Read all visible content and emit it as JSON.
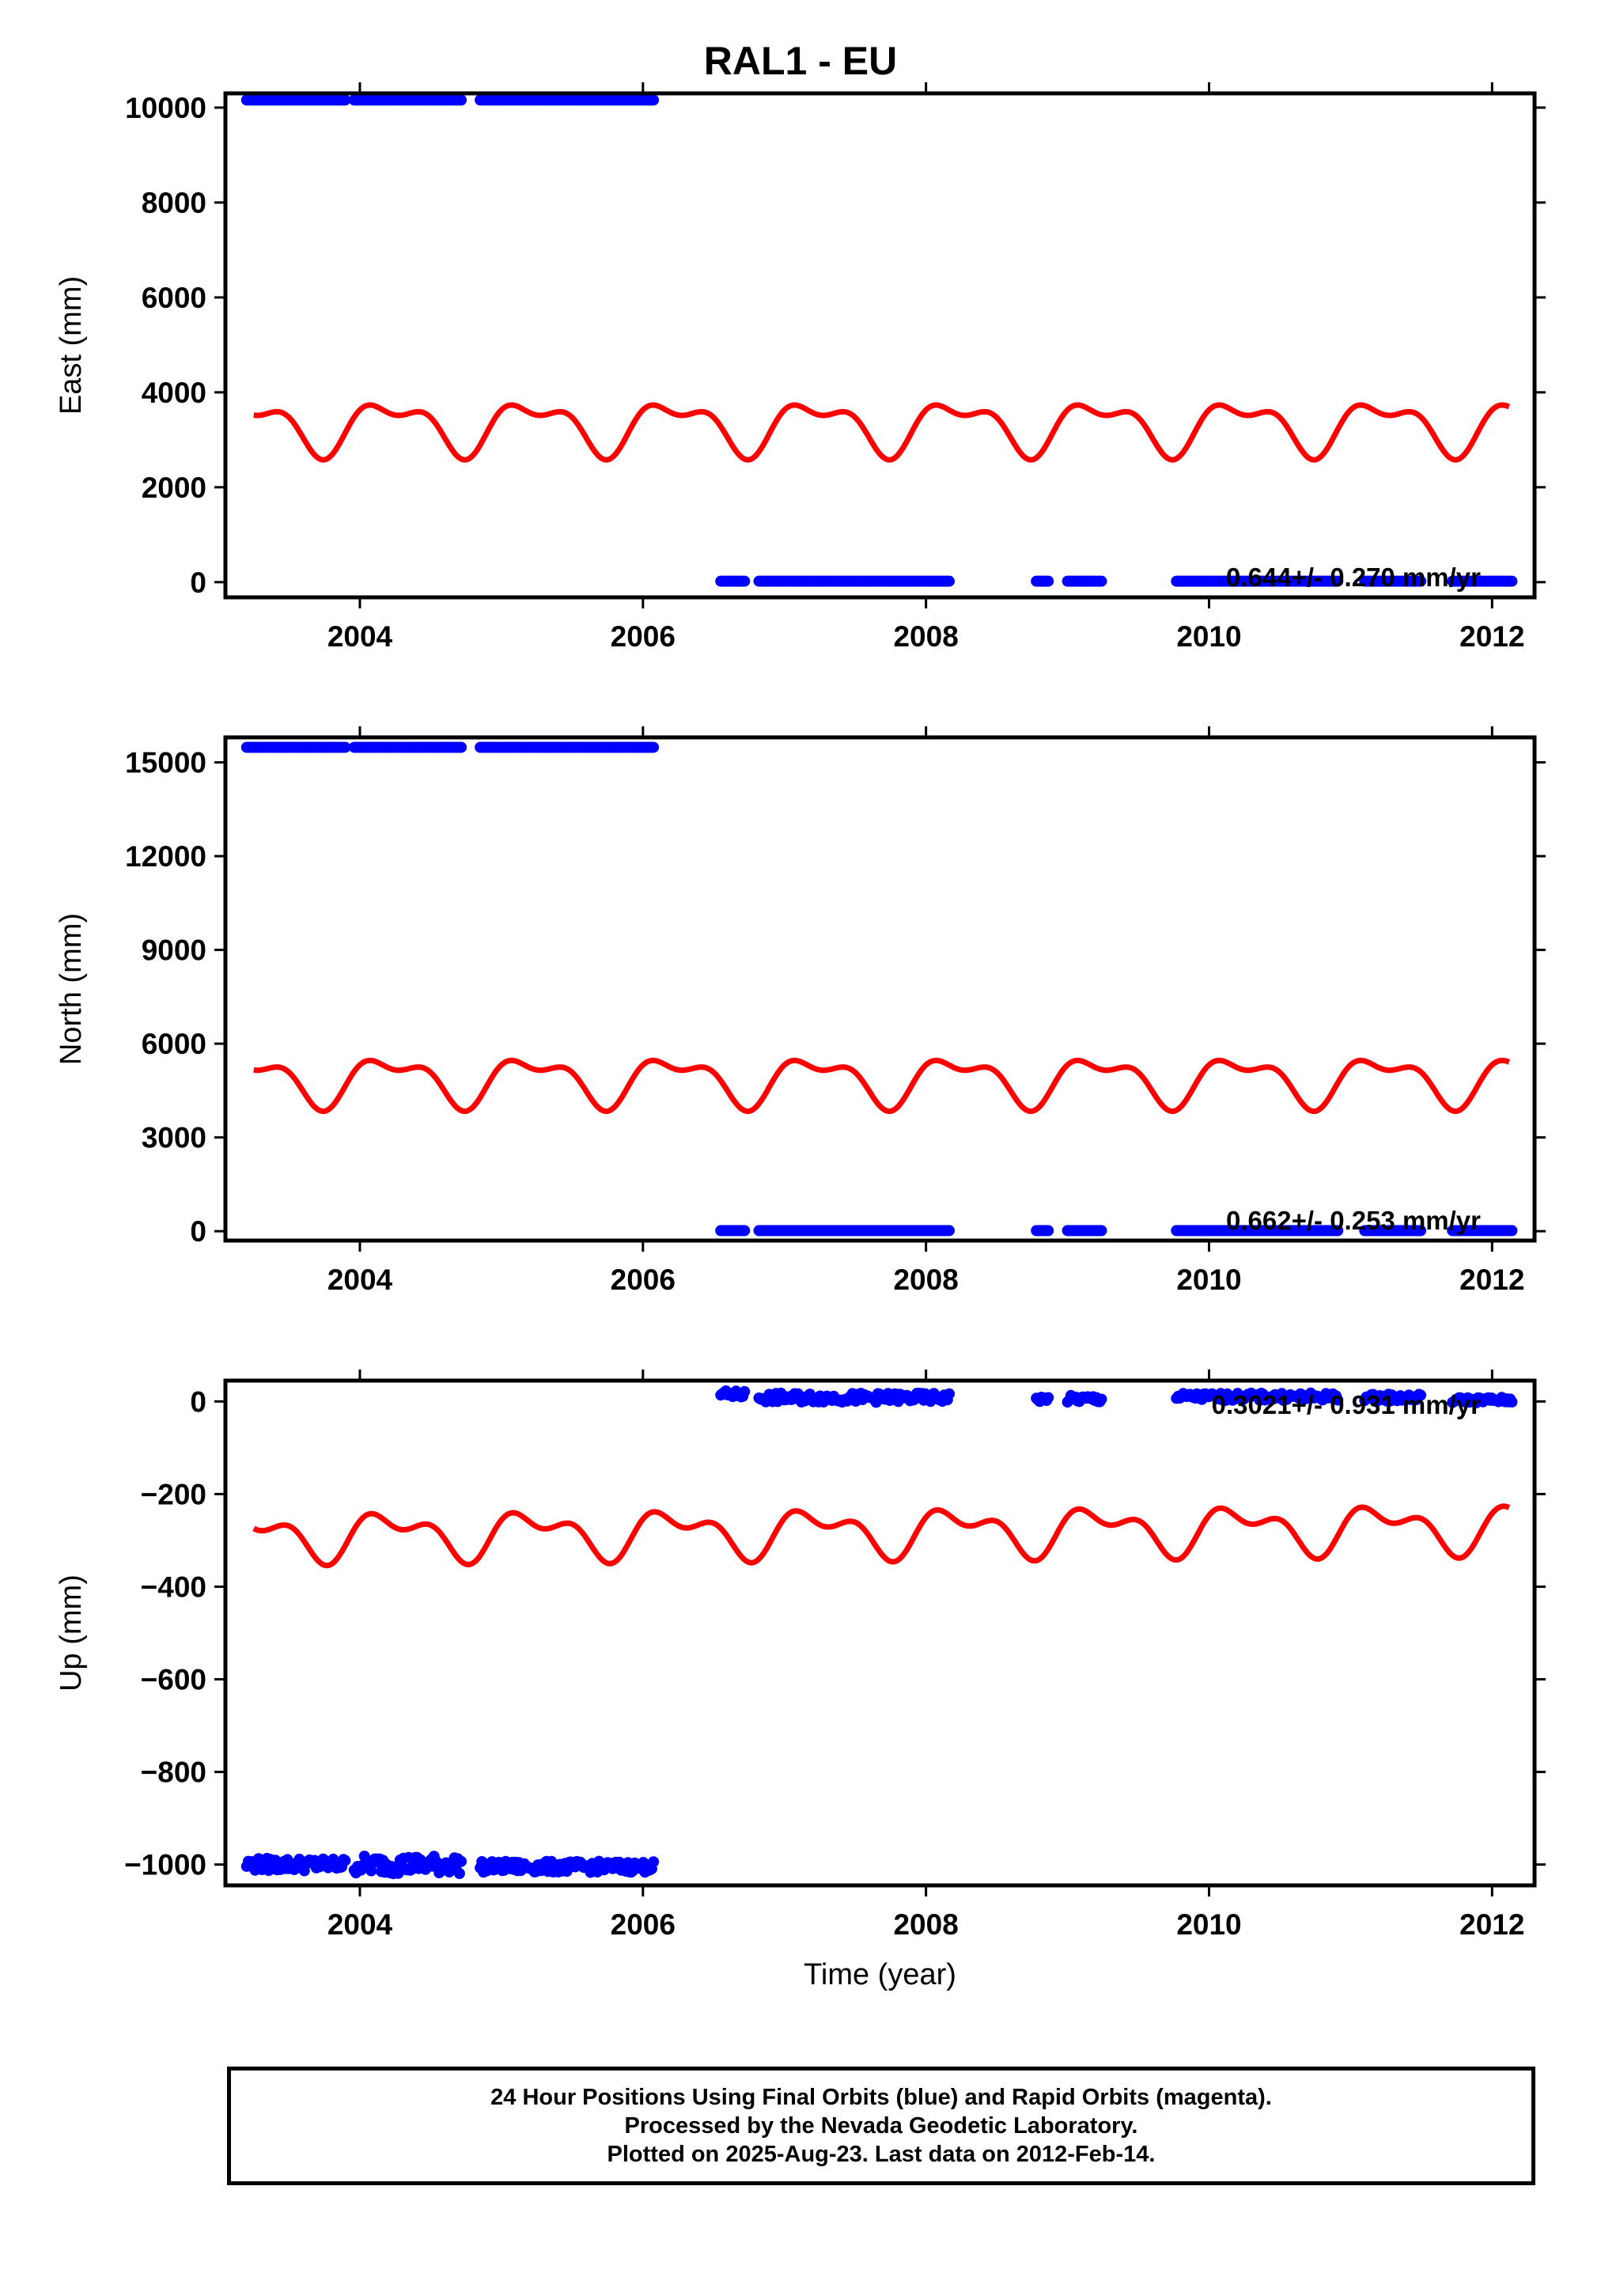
{
  "title": "RAL1 - EU",
  "caption": {
    "line1": "24 Hour Positions Using Final Orbits (blue) and Rapid Orbits (magenta).",
    "line2": "Processed by the Nevada Geodetic Laboratory.",
    "line3": "Plotted on 2025-Aug-23. Last data on 2012-Feb-14."
  },
  "colors": {
    "final_orbits": "#0000ff",
    "model_fit": "#ff0000",
    "axes": "#000000"
  },
  "chart_data": [
    {
      "type": "scatter",
      "ylabel": "East (mm)",
      "xlabel": "",
      "xlim": [
        2003.05,
        2012.3
      ],
      "ylim": [
        -320,
        10300
      ],
      "xticks": [
        2004,
        2006,
        2008,
        2010,
        2012
      ],
      "xtick_labels": [
        "2004",
        "2006",
        "2008",
        "2010",
        "2012"
      ],
      "yticks": [
        0,
        2000,
        4000,
        6000,
        8000,
        10000
      ],
      "ytick_labels": [
        "0",
        "2000",
        "4000",
        "6000",
        "8000",
        "10000"
      ],
      "rate_label": "0.644+/- 0.270 mm/yr",
      "segments": [
        {
          "start": 2003.2,
          "end": 2003.9,
          "y": 10160
        },
        {
          "start": 2003.96,
          "end": 2004.72,
          "y": 10160
        },
        {
          "start": 2004.85,
          "end": 2006.08,
          "y": 10160
        },
        {
          "start": 2006.55,
          "end": 2006.72,
          "y": 20
        },
        {
          "start": 2006.82,
          "end": 2008.17,
          "y": 20
        },
        {
          "start": 2008.78,
          "end": 2008.87,
          "y": 20
        },
        {
          "start": 2009.0,
          "end": 2009.25,
          "y": 20
        },
        {
          "start": 2009.77,
          "end": 2010.92,
          "y": 20
        },
        {
          "start": 2011.1,
          "end": 2011.5,
          "y": 20
        },
        {
          "start": 2011.72,
          "end": 2012.14,
          "y": 20
        }
      ],
      "model": {
        "x_start": 2003.25,
        "x_end": 2012.12,
        "mean": 3300,
        "annual_cos": 80,
        "annual_sin": 470,
        "semi_cos": 250,
        "semi_sin": 0
      }
    },
    {
      "type": "scatter",
      "ylabel": "North (mm)",
      "xlabel": "",
      "xlim": [
        2003.05,
        2012.3
      ],
      "ylim": [
        -300,
        15800
      ],
      "xticks": [
        2004,
        2006,
        2008,
        2010,
        2012
      ],
      "xtick_labels": [
        "2004",
        "2006",
        "2008",
        "2010",
        "2012"
      ],
      "yticks": [
        0,
        3000,
        6000,
        9000,
        12000,
        15000
      ],
      "ytick_labels": [
        "0",
        "3000",
        "6000",
        "9000",
        "12000",
        "15000"
      ],
      "rate_label": "0.662+/- 0.253 mm/yr",
      "segments": [
        {
          "start": 2003.2,
          "end": 2003.9,
          "y": 15480
        },
        {
          "start": 2003.96,
          "end": 2004.72,
          "y": 15480
        },
        {
          "start": 2004.85,
          "end": 2006.08,
          "y": 15480
        },
        {
          "start": 2006.55,
          "end": 2006.72,
          "y": 20
        },
        {
          "start": 2006.82,
          "end": 2008.17,
          "y": 20
        },
        {
          "start": 2008.78,
          "end": 2008.87,
          "y": 20
        },
        {
          "start": 2009.0,
          "end": 2009.25,
          "y": 20
        },
        {
          "start": 2009.77,
          "end": 2010.92,
          "y": 20
        },
        {
          "start": 2011.1,
          "end": 2011.5,
          "y": 20
        },
        {
          "start": 2011.72,
          "end": 2012.14,
          "y": 20
        }
      ],
      "model": {
        "x_start": 2003.25,
        "x_end": 2012.12,
        "mean": 4850,
        "annual_cos": 120,
        "annual_sin": 660,
        "semi_cos": 350,
        "semi_sin": 0
      }
    },
    {
      "type": "scatter",
      "ylabel": "Up (mm)",
      "xlabel": "Time (year)",
      "xlim": [
        2003.05,
        2012.3
      ],
      "ylim": [
        -1045,
        45
      ],
      "xticks": [
        2004,
        2006,
        2008,
        2010,
        2012
      ],
      "xtick_labels": [
        "2004",
        "2006",
        "2008",
        "2010",
        "2012"
      ],
      "yticks": [
        -1000,
        -800,
        -600,
        -400,
        -200,
        0
      ],
      "ytick_labels": [
        "−1000",
        "−800",
        "−600",
        "−400",
        "−200",
        "0"
      ],
      "rate_label": "0.3021+/- 0.931 mm/yr",
      "segments": [
        {
          "start": 2003.2,
          "end": 2003.9,
          "y": -1000,
          "scatter": 14
        },
        {
          "start": 2003.96,
          "end": 2004.72,
          "y": -1000,
          "scatter": 20
        },
        {
          "start": 2004.85,
          "end": 2006.08,
          "y": -1005,
          "scatter": 12
        },
        {
          "start": 2006.55,
          "end": 2006.72,
          "y": 15,
          "scatter": 8
        },
        {
          "start": 2006.82,
          "end": 2008.17,
          "y": 8,
          "scatter": 10
        },
        {
          "start": 2008.78,
          "end": 2008.87,
          "y": 5,
          "scatter": 6
        },
        {
          "start": 2009.0,
          "end": 2009.25,
          "y": 5,
          "scatter": 8
        },
        {
          "start": 2009.77,
          "end": 2010.92,
          "y": 10,
          "scatter": 8
        },
        {
          "start": 2011.1,
          "end": 2011.5,
          "y": 8,
          "scatter": 8
        },
        {
          "start": 2011.72,
          "end": 2012.14,
          "y": 3,
          "scatter": 6
        }
      ],
      "model": {
        "x_start": 2003.25,
        "x_end": 2012.12,
        "mean": -290,
        "annual_cos": 5,
        "annual_sin": 40,
        "semi_cos": 25,
        "semi_sin": 10,
        "trend": 2
      }
    }
  ]
}
